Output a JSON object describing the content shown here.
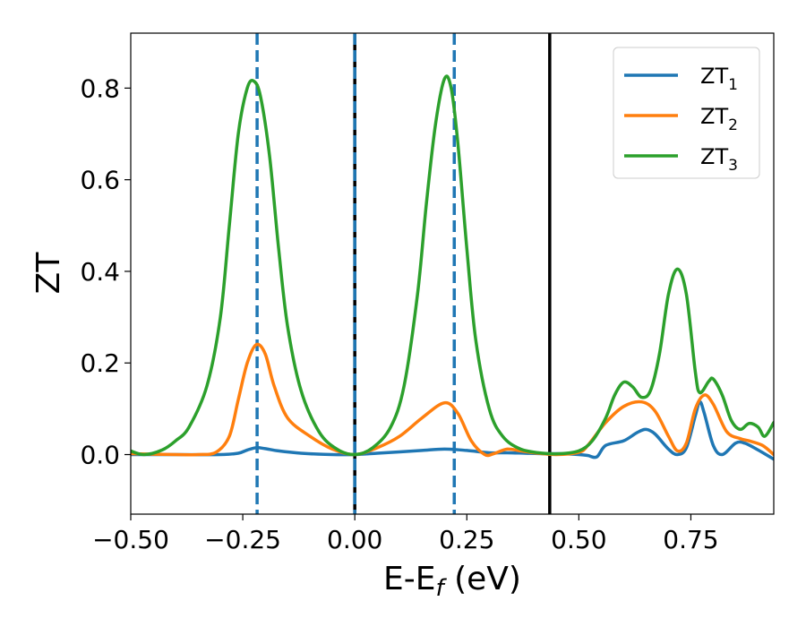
{
  "chart_data": {
    "type": "line",
    "title": "",
    "xlabel": "E-E",
    "xlabel_sub": "f",
    "xlabel_unit": " (eV)",
    "ylabel": "ZT",
    "xlim": [
      -0.5,
      0.935
    ],
    "ylim": [
      -0.13,
      0.92
    ],
    "xticks": [
      -0.5,
      -0.25,
      0.0,
      0.25,
      0.5,
      0.75
    ],
    "xtick_labels": [
      "−0.50",
      "−0.25",
      "0.00",
      "0.25",
      "0.50",
      "0.75"
    ],
    "yticks": [
      0.0,
      0.2,
      0.4,
      0.6,
      0.8
    ],
    "ytick_labels": [
      "0.0",
      "0.2",
      "0.4",
      "0.6",
      "0.8"
    ],
    "legend_position": "top-right",
    "series": [
      {
        "name": "ZT",
        "sub": "1",
        "color": "#1f77b4",
        "points": [
          [
            -0.5,
            0.0
          ],
          [
            -0.4,
            0.0
          ],
          [
            -0.3,
            0.0
          ],
          [
            -0.26,
            0.003
          ],
          [
            -0.24,
            0.01
          ],
          [
            -0.22,
            0.015
          ],
          [
            -0.2,
            0.013
          ],
          [
            -0.17,
            0.008
          ],
          [
            -0.12,
            0.003
          ],
          [
            -0.05,
            0.0
          ],
          [
            0.0,
            0.0
          ],
          [
            0.05,
            0.003
          ],
          [
            0.1,
            0.006
          ],
          [
            0.15,
            0.009
          ],
          [
            0.2,
            0.012
          ],
          [
            0.25,
            0.009
          ],
          [
            0.3,
            0.004
          ],
          [
            0.34,
            0.004
          ],
          [
            0.38,
            0.003
          ],
          [
            0.42,
            0.002
          ],
          [
            0.46,
            0.002
          ],
          [
            0.5,
            0.0
          ],
          [
            0.52,
            -0.002
          ],
          [
            0.54,
            -0.005
          ],
          [
            0.56,
            0.02
          ],
          [
            0.6,
            0.03
          ],
          [
            0.63,
            0.048
          ],
          [
            0.65,
            0.055
          ],
          [
            0.67,
            0.045
          ],
          [
            0.7,
            0.012
          ],
          [
            0.72,
            0.0
          ],
          [
            0.74,
            0.015
          ],
          [
            0.76,
            0.085
          ],
          [
            0.77,
            0.115
          ],
          [
            0.78,
            0.09
          ],
          [
            0.8,
            0.02
          ],
          [
            0.82,
            0.0
          ],
          [
            0.85,
            0.025
          ],
          [
            0.87,
            0.025
          ],
          [
            0.9,
            0.01
          ],
          [
            0.935,
            -0.01
          ]
        ]
      },
      {
        "name": "ZT",
        "sub": "2",
        "color": "#ff7f0e",
        "points": [
          [
            -0.5,
            0.002
          ],
          [
            -0.4,
            0.0
          ],
          [
            -0.35,
            0.0
          ],
          [
            -0.31,
            0.005
          ],
          [
            -0.28,
            0.04
          ],
          [
            -0.26,
            0.12
          ],
          [
            -0.24,
            0.2
          ],
          [
            -0.22,
            0.24
          ],
          [
            -0.2,
            0.22
          ],
          [
            -0.18,
            0.15
          ],
          [
            -0.15,
            0.08
          ],
          [
            -0.1,
            0.04
          ],
          [
            -0.05,
            0.012
          ],
          [
            0.0,
            0.0
          ],
          [
            0.05,
            0.015
          ],
          [
            0.1,
            0.04
          ],
          [
            0.15,
            0.08
          ],
          [
            0.2,
            0.113
          ],
          [
            0.23,
            0.09
          ],
          [
            0.26,
            0.03
          ],
          [
            0.29,
            0.0
          ],
          [
            0.31,
            0.002
          ],
          [
            0.34,
            0.012
          ],
          [
            0.37,
            0.008
          ],
          [
            0.4,
            0.004
          ],
          [
            0.45,
            0.0
          ],
          [
            0.5,
            0.005
          ],
          [
            0.52,
            0.02
          ],
          [
            0.56,
            0.07
          ],
          [
            0.6,
            0.105
          ],
          [
            0.64,
            0.115
          ],
          [
            0.67,
            0.095
          ],
          [
            0.7,
            0.04
          ],
          [
            0.72,
            0.008
          ],
          [
            0.74,
            0.025
          ],
          [
            0.76,
            0.1
          ],
          [
            0.78,
            0.13
          ],
          [
            0.8,
            0.11
          ],
          [
            0.83,
            0.05
          ],
          [
            0.86,
            0.035
          ],
          [
            0.88,
            0.03
          ],
          [
            0.91,
            0.02
          ],
          [
            0.935,
            0.0
          ]
        ]
      },
      {
        "name": "ZT",
        "sub": "3",
        "color": "#2ca02c",
        "points": [
          [
            -0.5,
            0.008
          ],
          [
            -0.47,
            0.0
          ],
          [
            -0.43,
            0.01
          ],
          [
            -0.4,
            0.03
          ],
          [
            -0.37,
            0.06
          ],
          [
            -0.33,
            0.15
          ],
          [
            -0.3,
            0.3
          ],
          [
            -0.28,
            0.5
          ],
          [
            -0.26,
            0.7
          ],
          [
            -0.24,
            0.8
          ],
          [
            -0.225,
            0.815
          ],
          [
            -0.21,
            0.78
          ],
          [
            -0.19,
            0.65
          ],
          [
            -0.17,
            0.45
          ],
          [
            -0.15,
            0.28
          ],
          [
            -0.12,
            0.14
          ],
          [
            -0.08,
            0.05
          ],
          [
            -0.04,
            0.012
          ],
          [
            0.0,
            0.0
          ],
          [
            0.04,
            0.015
          ],
          [
            0.08,
            0.06
          ],
          [
            0.11,
            0.15
          ],
          [
            0.14,
            0.35
          ],
          [
            0.16,
            0.55
          ],
          [
            0.18,
            0.72
          ],
          [
            0.2,
            0.82
          ],
          [
            0.215,
            0.8
          ],
          [
            0.23,
            0.68
          ],
          [
            0.25,
            0.45
          ],
          [
            0.27,
            0.25
          ],
          [
            0.3,
            0.1
          ],
          [
            0.33,
            0.04
          ],
          [
            0.37,
            0.012
          ],
          [
            0.42,
            0.003
          ],
          [
            0.46,
            0.002
          ],
          [
            0.5,
            0.008
          ],
          [
            0.53,
            0.03
          ],
          [
            0.56,
            0.08
          ],
          [
            0.58,
            0.13
          ],
          [
            0.6,
            0.158
          ],
          [
            0.62,
            0.148
          ],
          [
            0.64,
            0.125
          ],
          [
            0.66,
            0.14
          ],
          [
            0.68,
            0.22
          ],
          [
            0.7,
            0.35
          ],
          [
            0.72,
            0.405
          ],
          [
            0.74,
            0.35
          ],
          [
            0.76,
            0.18
          ],
          [
            0.77,
            0.135
          ],
          [
            0.79,
            0.16
          ],
          [
            0.8,
            0.165
          ],
          [
            0.82,
            0.13
          ],
          [
            0.84,
            0.075
          ],
          [
            0.86,
            0.055
          ],
          [
            0.88,
            0.068
          ],
          [
            0.9,
            0.06
          ],
          [
            0.915,
            0.04
          ],
          [
            0.935,
            0.07
          ]
        ]
      }
    ],
    "vlines": [
      {
        "x": -0.218,
        "style": "dashed",
        "color": "#1f77b4"
      },
      {
        "x": 0.0,
        "style": "solid",
        "color": "#000000"
      },
      {
        "x": 0.0,
        "style": "dashed",
        "color": "#1f77b4"
      },
      {
        "x": 0.222,
        "style": "dashed",
        "color": "#1f77b4"
      },
      {
        "x": 0.435,
        "style": "solid",
        "color": "#000000"
      }
    ]
  }
}
